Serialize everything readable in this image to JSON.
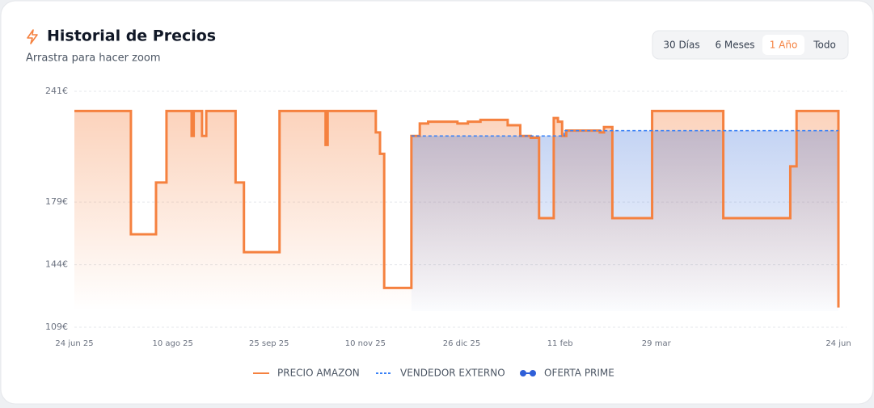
{
  "header": {
    "title": "Historial de Precios",
    "subtitle": "Arrastra para hacer zoom"
  },
  "range_buttons": {
    "options": [
      "30 Días",
      "6 Meses",
      "1 Año",
      "Todo"
    ],
    "active": 2
  },
  "chart_data": {
    "type": "line",
    "step": true,
    "grid": true,
    "xlim": [
      0,
      365
    ],
    "xticks": [
      {
        "value": 0,
        "label": "24 jun 25"
      },
      {
        "value": 47,
        "label": "10 ago 25"
      },
      {
        "value": 93,
        "label": "25 sep 25"
      },
      {
        "value": 139,
        "label": "10 nov 25"
      },
      {
        "value": 185,
        "label": "26 dic 25"
      },
      {
        "value": 232,
        "label": "11 feb"
      },
      {
        "value": 278,
        "label": "29 mar"
      },
      {
        "value": 365,
        "label": "24 jun"
      }
    ],
    "ylim": [
      109,
      241
    ],
    "yticks": [
      {
        "value": 241,
        "label": "241€"
      },
      {
        "value": 179,
        "label": "179€"
      },
      {
        "value": 144,
        "label": "144€"
      },
      {
        "value": 109,
        "label": "109€"
      }
    ],
    "series": [
      {
        "name": "PRECIO AMAZON",
        "color": "#f5813f",
        "style": "solid",
        "x": [
          0,
          27,
          39,
          44,
          56,
          57,
          61,
          63,
          77,
          81,
          98,
          120,
          121,
          144,
          146,
          148,
          161,
          165,
          169,
          183,
          188,
          194,
          207,
          213,
          218,
          222,
          229,
          231,
          233,
          235,
          251,
          253,
          257,
          276,
          310,
          342,
          345,
          365
        ],
        "values": [
          230,
          161,
          190,
          230,
          216,
          230,
          216,
          230,
          190,
          151,
          230,
          211,
          230,
          218,
          206,
          131,
          216,
          223,
          224,
          223,
          224,
          225,
          222,
          216,
          215,
          170,
          226,
          224,
          216,
          219,
          218,
          221,
          170,
          230,
          170,
          199,
          230,
          120
        ]
      },
      {
        "name": "VENDEDOR EXTERNO",
        "color": "#3b82f6",
        "style": "dashed",
        "x": [
          161,
          234,
          365
        ],
        "values": [
          216,
          219,
          219
        ]
      },
      {
        "name": "OFERTA PRIME",
        "color": "#2f5fd8",
        "style": "dots",
        "x": [],
        "values": []
      }
    ]
  }
}
